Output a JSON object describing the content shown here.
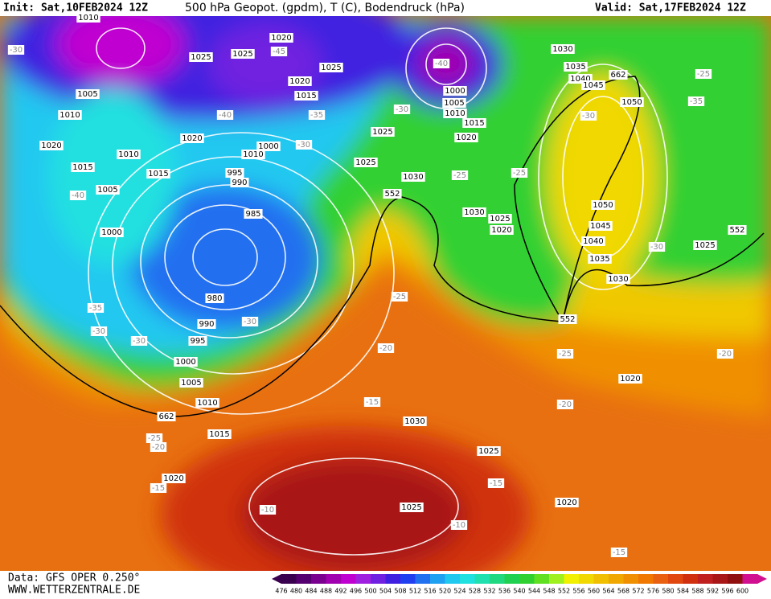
{
  "header": {
    "init": "Init: Sat,10FEB2024 12Z",
    "title": "500 hPa Geopot. (gpdm), T (C), Bodendruck (hPa)",
    "valid": "Valid: Sat,17FEB2024 12Z"
  },
  "footer": {
    "data": "Data: GFS OPER 0.250°",
    "site": "WWW.WETTERZENTRALE.DE"
  },
  "map": {
    "isobar_labels": [
      "1010",
      "1025",
      "1025",
      "1020",
      "1025",
      "1020",
      "1015",
      "1005",
      "1010",
      "1020",
      "1020",
      "1010",
      "1000",
      "1010",
      "1015",
      "1015",
      "995",
      "990",
      "1005",
      "985",
      "1000",
      "980",
      "990",
      "995",
      "1000",
      "1005",
      "1010",
      "1015",
      "1020",
      "1025",
      "1025",
      "1030",
      "1030",
      "1025",
      "1020",
      "1000",
      "1005",
      "1010",
      "1015",
      "1020",
      "1030",
      "1035",
      "1040",
      "1045",
      "1050",
      "1050",
      "1045",
      "1040",
      "1035",
      "1030",
      "1025",
      "1030",
      "1025",
      "1025",
      "1020",
      "1020"
    ],
    "temperature_labels": [
      "-30",
      "-45",
      "-40",
      "-40",
      "-30",
      "-35",
      "-30",
      "-40",
      "-25",
      "-25",
      "-30",
      "-25",
      "-35",
      "-35",
      "-30",
      "-30",
      "-30",
      "-25",
      "-20",
      "-25",
      "-20",
      "-20",
      "-30",
      "-25",
      "-20",
      "-15",
      "-15",
      "-15",
      "-10",
      "-10",
      "-15"
    ],
    "height_labels": [
      "662",
      "552",
      "552",
      "552",
      "662"
    ]
  },
  "colorbar": {
    "levels": [
      476,
      480,
      484,
      488,
      492,
      496,
      500,
      504,
      508,
      512,
      516,
      520,
      524,
      528,
      532,
      536,
      540,
      544,
      548,
      552,
      556,
      560,
      564,
      568,
      572,
      576,
      580,
      584,
      588,
      592,
      596,
      600
    ],
    "colors": [
      "#3a0050",
      "#550070",
      "#7a0090",
      "#a000b0",
      "#c000d0",
      "#a020e0",
      "#7020e0",
      "#4020e0",
      "#2040f0",
      "#2070f0",
      "#20a0f0",
      "#20c8f0",
      "#20e0e0",
      "#20e0b0",
      "#20d880",
      "#20d050",
      "#30d030",
      "#60e020",
      "#a0f020",
      "#f0f000",
      "#f0d800",
      "#f0c000",
      "#f0a800",
      "#f09000",
      "#f07800",
      "#e86010",
      "#e04810",
      "#d03010",
      "#c02020",
      "#a81818",
      "#901010",
      "#d01090"
    ]
  }
}
